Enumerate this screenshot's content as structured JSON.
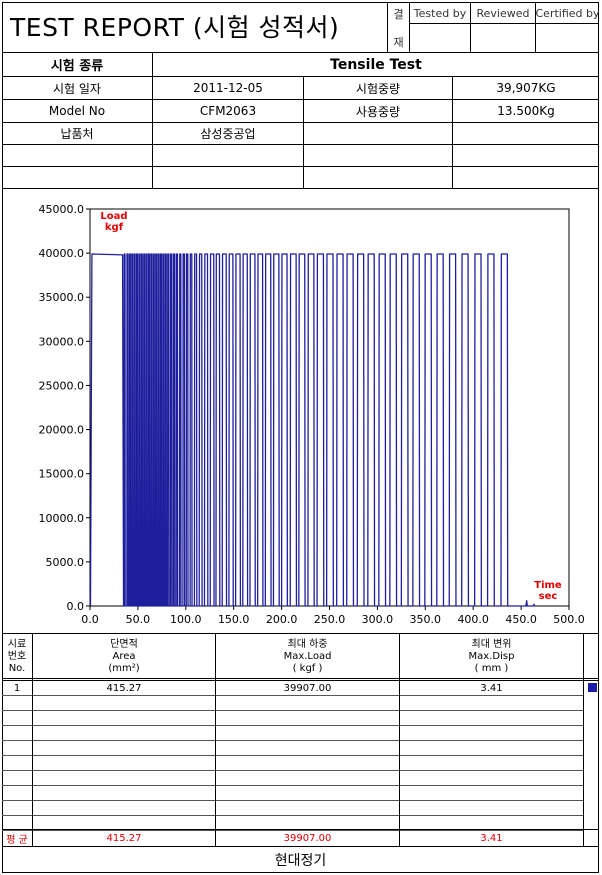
{
  "header": {
    "title": "TEST REPORT (시험 성적서)",
    "approval_chars": [
      "결",
      "재"
    ],
    "approval_labels": [
      "Tested by",
      "Reviewed",
      "Certified by"
    ]
  },
  "info": {
    "test_type_label": "시험 종류",
    "test_type_value": "Tensile Test",
    "date_label": "시험 일자",
    "date_value": "2011-12-05",
    "test_load_label": "시험중량",
    "test_load_value": "39,907KG",
    "model_label": "Model No",
    "model_value": "CFM2063",
    "use_load_label": "사용중량",
    "use_load_value": "13.500Kg",
    "customer_label": "납품처",
    "customer_value": "삼성중공업"
  },
  "chart_data": {
    "type": "line",
    "xlabel": "Time\nsec",
    "ylabel": "Load\nkgf",
    "xlabel_lines": [
      "Time",
      "sec"
    ],
    "ylabel_lines": [
      "Load",
      "kgf"
    ],
    "xlim": [
      0,
      500
    ],
    "ylim": [
      0,
      45000
    ],
    "x_ticks": [
      "0.0",
      "50.0",
      "100.0",
      "150.0",
      "200.0",
      "250.0",
      "300.0",
      "350.0",
      "400.0",
      "450.0",
      "500.0"
    ],
    "y_ticks": [
      "0.0",
      "5000.0",
      "10000.0",
      "15000.0",
      "20000.0",
      "25000.0",
      "30000.0",
      "35000.0",
      "40000.0",
      "45000.0"
    ],
    "grid": false,
    "series_color": "#1f1f9e",
    "first_plateau": {
      "x": [
        0.5,
        2.0,
        34.0,
        35.0
      ],
      "y": [
        0,
        39900,
        39800,
        0
      ]
    },
    "peak_load": 39900,
    "cycle_start_times": [
      35.5,
      38.5,
      41.0,
      43.5,
      46.0,
      48.5,
      51.0,
      53.5,
      56.0,
      58.5,
      61.0,
      63.5,
      66.0,
      68.5,
      71.0,
      73.5,
      76.0,
      78.5,
      81.0,
      84.0,
      87.0,
      90.0,
      93.5,
      97.0,
      100.5,
      104.5,
      109.0,
      114.0,
      119.5,
      125.5,
      131.5,
      138.0,
      145.0,
      152.0,
      159.5,
      167.0,
      175.0,
      183.0,
      191.5,
      200.0,
      209.0,
      218.0,
      227.5,
      237.0,
      247.0,
      257.5,
      268.0,
      279.0,
      290.0,
      301.5,
      313.0,
      325.0,
      337.0,
      349.5,
      362.0,
      375.0,
      388.0,
      401.5,
      415.0,
      429.0
    ],
    "cycle_durations": [
      1.2,
      1.2,
      1.2,
      1.2,
      1.2,
      1.2,
      1.2,
      1.2,
      1.2,
      1.2,
      1.2,
      1.2,
      1.2,
      1.2,
      1.2,
      1.2,
      1.2,
      1.2,
      1.5,
      1.5,
      1.5,
      1.5,
      1.5,
      1.8,
      1.8,
      2.0,
      2.5,
      3.0,
      3.5,
      4.0,
      4.0,
      4.5,
      4.5,
      5.0,
      5.0,
      5.5,
      5.5,
      6.0,
      6.0,
      6.0,
      6.5,
      6.5,
      6.5,
      7.0,
      7.0,
      7.0,
      7.0,
      7.0,
      7.0,
      7.0,
      7.0,
      7.0,
      7.0,
      7.0,
      7.0,
      7.0,
      7.0,
      7.0,
      7.0,
      7.0
    ],
    "tail_x": [
      455,
      455.8,
      456.5,
      463,
      463.4,
      464
    ],
    "tail_y": [
      0,
      600,
      0,
      0,
      200,
      0
    ]
  },
  "results": {
    "header": {
      "no": [
        "시료",
        "번호",
        "No."
      ],
      "area": [
        "단면적",
        "Area",
        "(mm²)"
      ],
      "load": [
        "최대 하중",
        "Max.Load",
        "( kgf )"
      ],
      "disp": [
        "최대 변위",
        "Max.Disp",
        "( mm )"
      ]
    },
    "rows": [
      {
        "no": "1",
        "area": "415.27",
        "load": "39907.00",
        "disp": "3.41"
      }
    ],
    "avg_label": "평 균",
    "avg": {
      "area": "415.27",
      "load": "39907.00",
      "disp": "3.41"
    },
    "marker_color": "#1a1aa8"
  },
  "footer": {
    "company": "현대정기"
  }
}
